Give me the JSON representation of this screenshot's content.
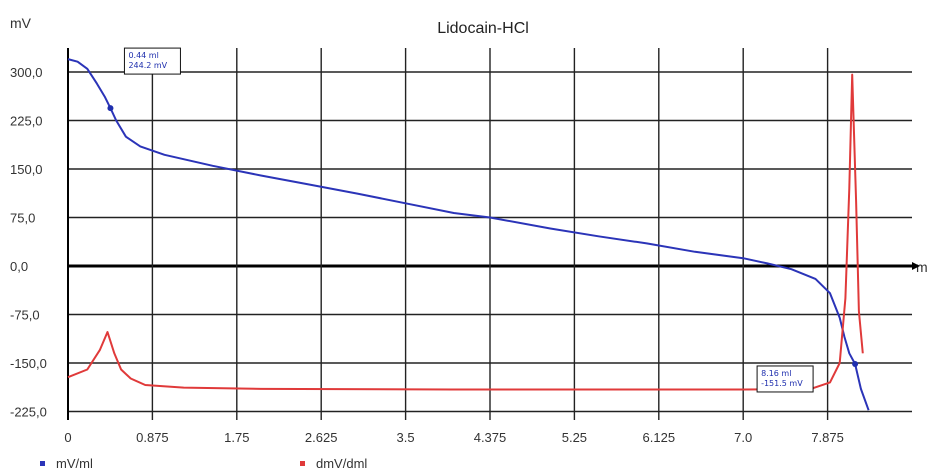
{
  "chart_data": {
    "type": "line",
    "title": "Lidocain-HCl",
    "ylabel": "mV",
    "xlabel": "m",
    "xlim": [
      0,
      8.75
    ],
    "ylim": [
      -225,
      330
    ],
    "x_ticks": [
      "0",
      "0.875",
      "1.75",
      "2.625",
      "3.5",
      "4.375",
      "5.25",
      "6.125",
      "7.0",
      "7.875"
    ],
    "y_ticks": [
      {
        "value": 300,
        "label": "300,0"
      },
      {
        "value": 225,
        "label": "225,0"
      },
      {
        "value": 150,
        "label": "150,0"
      },
      {
        "value": 75,
        "label": "75,0"
      },
      {
        "value": 0,
        "label": "0,0"
      },
      {
        "value": -75,
        "label": "-75,0"
      },
      {
        "value": -150,
        "label": "-150,0"
      },
      {
        "value": -225,
        "label": "-225,0"
      }
    ],
    "grid": true,
    "legend_position": "bottom",
    "series": [
      {
        "name": "mV/ml",
        "color": "#2b34b8",
        "points": [
          [
            0.0,
            320
          ],
          [
            0.1,
            316
          ],
          [
            0.2,
            305
          ],
          [
            0.3,
            282
          ],
          [
            0.38,
            262
          ],
          [
            0.44,
            244.2
          ],
          [
            0.5,
            225
          ],
          [
            0.6,
            200
          ],
          [
            0.75,
            185
          ],
          [
            1.0,
            172
          ],
          [
            1.5,
            155
          ],
          [
            2.0,
            140
          ],
          [
            2.5,
            126
          ],
          [
            3.0,
            112
          ],
          [
            3.5,
            97
          ],
          [
            4.0,
            82
          ],
          [
            4.375,
            75
          ],
          [
            5.0,
            58
          ],
          [
            5.5,
            46
          ],
          [
            6.0,
            35
          ],
          [
            6.5,
            22
          ],
          [
            7.0,
            12
          ],
          [
            7.25,
            4
          ],
          [
            7.5,
            -5
          ],
          [
            7.75,
            -20
          ],
          [
            7.9,
            -42
          ],
          [
            8.0,
            -80
          ],
          [
            8.05,
            -110
          ],
          [
            8.1,
            -135
          ],
          [
            8.16,
            -151.5
          ],
          [
            8.22,
            -190
          ],
          [
            8.3,
            -223
          ]
        ]
      },
      {
        "name": "dmV/dml",
        "color": "#e03a3a",
        "points": [
          [
            0.0,
            -172
          ],
          [
            0.2,
            -160
          ],
          [
            0.33,
            -130
          ],
          [
            0.41,
            -102
          ],
          [
            0.48,
            -135
          ],
          [
            0.55,
            -160
          ],
          [
            0.65,
            -174
          ],
          [
            0.8,
            -184
          ],
          [
            1.2,
            -188
          ],
          [
            2.0,
            -190
          ],
          [
            4.0,
            -191
          ],
          [
            6.0,
            -191
          ],
          [
            7.0,
            -191
          ],
          [
            7.7,
            -190
          ],
          [
            7.9,
            -180
          ],
          [
            8.0,
            -150
          ],
          [
            8.06,
            -50
          ],
          [
            8.1,
            120
          ],
          [
            8.13,
            296
          ],
          [
            8.17,
            100
          ],
          [
            8.2,
            -70
          ],
          [
            8.24,
            -135
          ]
        ]
      }
    ],
    "annotations": [
      {
        "x": 0.44,
        "y": 244.2,
        "series": "mV/ml",
        "lines": [
          "0.44 ml",
          "244.2 mV"
        ]
      },
      {
        "x": 8.16,
        "y": -151.5,
        "series": "mV/ml",
        "lines": [
          "8.16 ml",
          "-151.5 mV"
        ]
      }
    ]
  }
}
